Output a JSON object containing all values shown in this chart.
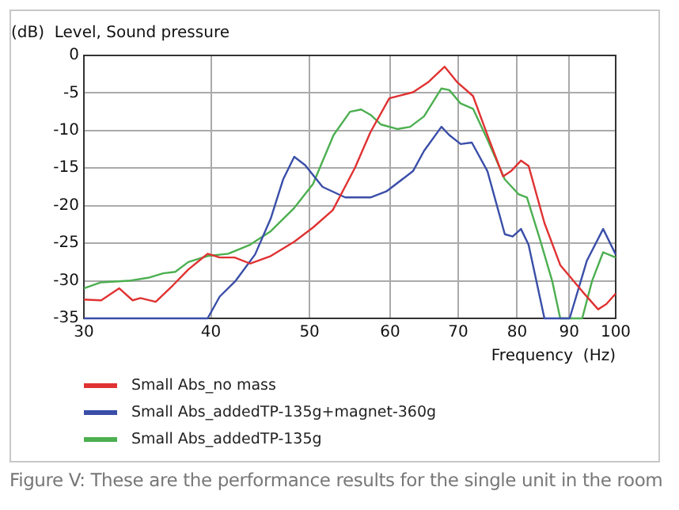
{
  "chart_data": {
    "type": "line",
    "ylabel": "(dB)  Level, Sound pressure",
    "xlabel": "Frequency  (Hz)",
    "log": "x",
    "xlim": [
      30,
      100
    ],
    "xticks": [
      30,
      40,
      50,
      60,
      70,
      80,
      90,
      100
    ],
    "ylim": [
      -35,
      0
    ],
    "yticks": [
      -35,
      -30,
      -25,
      -20,
      -15,
      -10,
      -5,
      0
    ],
    "grid": true,
    "legend": "bottom left",
    "marker": "none",
    "line_style": "solid",
    "annotations": [
      "Figure V: These are the performance results for the single unit in the room"
    ],
    "series": [
      {
        "name": "Small Abs_no mass",
        "color": "#e03232",
        "x": [
          30,
          31.2,
          32.5,
          33.5,
          34.1,
          35.3,
          36.7,
          38.0,
          39.7,
          40.8,
          42.2,
          43.7,
          45.8,
          48.3,
          50.4,
          52.7,
          55.4,
          57.4,
          59.9,
          63.2,
          65.5,
          67.9,
          69.9,
          72.4,
          74.8,
          77.5,
          78.9,
          80.7,
          82.1,
          85.1,
          88.2,
          92.7,
          96.1,
          97.9,
          100
        ],
        "values": [
          -32.5,
          -32.6,
          -31.0,
          -32.6,
          -32.3,
          -32.8,
          -30.6,
          -28.5,
          -26.4,
          -26.9,
          -26.9,
          -27.7,
          -26.7,
          -24.8,
          -22.9,
          -20.6,
          -15.0,
          -10.2,
          -5.7,
          -4.9,
          -3.5,
          -1.5,
          -3.6,
          -5.4,
          -10.6,
          -16.1,
          -15.4,
          -14.0,
          -14.7,
          -22.3,
          -27.9,
          -31.4,
          -33.8,
          -33.1,
          -31.7
        ]
      },
      {
        "name": "Small Abs_addedTP-135g+magnet-360g",
        "color": "#3a4ea8",
        "x": [
          30,
          39.7,
          40.8,
          42.3,
          44.2,
          45.8,
          47.1,
          48.3,
          49.5,
          51.5,
          54.2,
          57.4,
          59.5,
          63.2,
          64.8,
          67.4,
          68.6,
          70.4,
          72.2,
          74.8,
          77.8,
          79.2,
          80.7,
          82.1,
          85.1,
          90.1,
          93.7,
          97.2,
          100
        ],
        "values": [
          -35,
          -35,
          -32.1,
          -30.0,
          -26.5,
          -21.7,
          -16.5,
          -13.5,
          -14.6,
          -17.5,
          -18.9,
          -18.9,
          -18.1,
          -15.4,
          -12.7,
          -9.5,
          -10.6,
          -11.8,
          -11.6,
          -15.4,
          -23.8,
          -24.1,
          -23.1,
          -25.2,
          -35,
          -35,
          -27.3,
          -23.1,
          -26.5
        ]
      },
      {
        "name": "Small Abs_addedTP-135g",
        "color": "#4caf50",
        "x": [
          30,
          31.2,
          33.2,
          34.7,
          35.9,
          36.9,
          38.0,
          39.7,
          41.6,
          43.7,
          45.8,
          48.3,
          50.4,
          52.8,
          54.8,
          56.2,
          57.4,
          58.8,
          61.0,
          62.8,
          64.8,
          67.4,
          68.6,
          70.4,
          72.4,
          74.8,
          77.8,
          80.3,
          81.8,
          84.2,
          86.6,
          88.2,
          92.7,
          94.8,
          97.2,
          100
        ],
        "values": [
          -31.0,
          -30.2,
          -30.0,
          -29.6,
          -29.0,
          -28.8,
          -27.5,
          -26.7,
          -26.4,
          -25.2,
          -23.4,
          -20.3,
          -17.1,
          -10.6,
          -7.5,
          -7.2,
          -7.9,
          -9.2,
          -9.8,
          -9.5,
          -8.1,
          -4.4,
          -4.6,
          -6.4,
          -7.1,
          -11.2,
          -16.5,
          -18.5,
          -18.9,
          -24.4,
          -30.0,
          -35,
          -35,
          -30.0,
          -26.2,
          -26.9
        ]
      }
    ]
  }
}
